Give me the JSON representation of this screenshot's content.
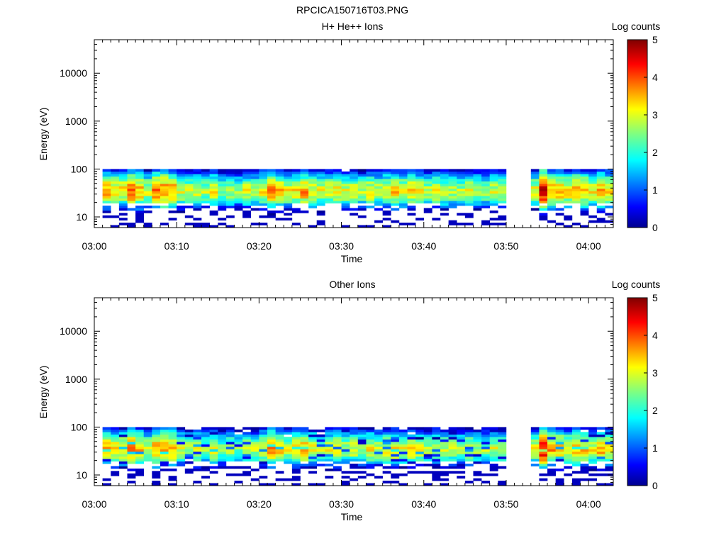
{
  "page_title": "RPCICA150716T03.PNG",
  "chart_data": [
    {
      "type": "heatmap",
      "title": "H+ He++ Ions",
      "xlabel": "Time",
      "ylabel": "Energy (eV)",
      "y_scale": "log",
      "ylim": [
        6,
        50000
      ],
      "y_ticks": [
        10,
        100,
        1000,
        10000
      ],
      "y_tick_labels": [
        "10",
        "100",
        "1000",
        "10000"
      ],
      "xlim": [
        "03:00",
        "04:03"
      ],
      "x_ticks": [
        "03:00",
        "03:10",
        "03:20",
        "03:30",
        "03:40",
        "03:50",
        "04:00"
      ],
      "data_time_ranges": [
        [
          "03:01",
          "03:50"
        ],
        [
          "03:53",
          "04:03"
        ]
      ],
      "data_energy_range_eV": [
        6,
        100
      ],
      "colorbar": {
        "label": "Log counts",
        "min": 0,
        "max": 5,
        "ticks": [
          "0",
          "1",
          "2",
          "3",
          "4",
          "5"
        ]
      },
      "peak_energy_eV": 35,
      "peak_profile_log_counts": [
        3.6,
        3.4,
        3.3,
        3.9,
        3.5,
        3.0,
        3.8,
        3.9,
        3.7,
        3.0,
        2.9,
        3.1,
        2.8,
        3.2,
        2.7,
        2.9,
        2.6,
        3.0,
        2.9,
        3.2,
        3.8,
        3.5,
        3.1,
        3.3,
        3.6,
        3.2,
        3.0,
        3.1,
        3.3,
        3.0,
        3.1,
        2.9,
        3.2,
        3.0,
        3.2,
        3.4,
        3.1,
        3.3,
        3.1,
        2.8,
        3.1,
        3.0,
        2.9,
        2.8,
        3.1,
        2.9,
        2.8,
        3.0,
        2.9,
        3.1,
        4.6,
        3.7,
        3.6,
        3.3,
        3.6,
        3.5,
        3.2,
        3.6,
        3.3,
        3.5,
        3.7
      ]
    },
    {
      "type": "heatmap",
      "title": "Other Ions",
      "xlabel": "Time",
      "ylabel": "Energy (eV)",
      "y_scale": "log",
      "ylim": [
        6,
        50000
      ],
      "y_ticks": [
        10,
        100,
        1000,
        10000
      ],
      "y_tick_labels": [
        "10",
        "100",
        "1000",
        "10000"
      ],
      "xlim": [
        "03:00",
        "04:03"
      ],
      "x_ticks": [
        "03:00",
        "03:10",
        "03:20",
        "03:30",
        "03:40",
        "03:50",
        "04:00"
      ],
      "data_time_ranges": [
        [
          "03:01",
          "03:50"
        ],
        [
          "03:53",
          "04:03"
        ]
      ],
      "data_energy_range_eV": [
        6,
        100
      ],
      "colorbar": {
        "label": "Log counts",
        "min": 0,
        "max": 5,
        "ticks": [
          "0",
          "1",
          "2",
          "3",
          "4",
          "5"
        ]
      },
      "peak_energy_eV": 35,
      "peak_profile_log_counts": [
        3.5,
        3.3,
        3.2,
        3.8,
        3.4,
        2.9,
        3.7,
        3.8,
        3.6,
        2.9,
        2.8,
        3.0,
        2.7,
        3.1,
        2.6,
        2.8,
        2.5,
        2.9,
        2.8,
        3.1,
        3.7,
        3.4,
        3.0,
        3.2,
        3.5,
        3.1,
        2.9,
        3.0,
        3.2,
        2.9,
        3.0,
        2.8,
        3.1,
        2.9,
        3.1,
        3.3,
        3.0,
        3.2,
        3.0,
        2.7,
        3.0,
        2.9,
        2.8,
        2.7,
        3.0,
        2.8,
        2.7,
        2.9,
        2.8,
        3.0,
        4.5,
        3.6,
        3.5,
        3.2,
        3.5,
        3.4,
        3.1,
        3.5,
        3.2,
        3.4,
        3.6
      ]
    }
  ]
}
